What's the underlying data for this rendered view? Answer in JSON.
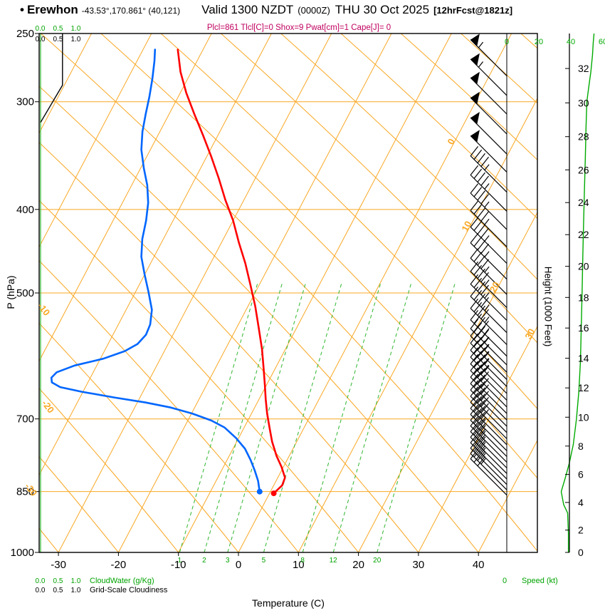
{
  "header": {
    "bullet": "•",
    "station": "Erewhon",
    "coords": "-43.53°,170.861° (40,121)",
    "valid": "Valid 1300 NZDT",
    "zulu": "(0000Z)",
    "date": "THU 30 Oct 2025",
    "fcst": "[12hrFcst@1821z]",
    "params": "Plcl=861 Tlcl[C]=0 Shox=9 Pwat[cm]=1 Cape[J]= 0"
  },
  "axes": {
    "pressure_title": "P (hPa)",
    "pressure_ticks": [
      250,
      300,
      400,
      500,
      700,
      850,
      1000
    ],
    "temp_title": "Temperature (C)",
    "temp_ticks": [
      -30,
      -20,
      -10,
      0,
      10,
      20,
      30,
      40
    ],
    "height_title": "Height (1000 Feet)",
    "height_ticks": [
      0,
      2,
      4,
      6,
      8,
      10,
      12,
      14,
      16,
      18,
      20,
      22,
      24,
      26,
      28,
      30,
      32
    ],
    "speed_title": "Speed (kt)",
    "speed_ticks": [
      0,
      20,
      40,
      60
    ],
    "speed_tick_bottom": "0",
    "cw_scale": [
      "0.0",
      "0.5",
      "1.0"
    ],
    "cloudwater_title": "CloudWater (g/Kg)",
    "cloudiness_title": "Grid-Scale Cloudiness",
    "isotherm_labels_right": [
      {
        "t": 0,
        "p": 335
      },
      {
        "t": 10,
        "p": 420
      },
      {
        "t": 20,
        "p": 494
      },
      {
        "t": 30,
        "p": 560
      }
    ],
    "adiabat_labels_left": [
      {
        "t": -10,
        "p": 525,
        "x": 58
      },
      {
        "t": -20,
        "p": 681,
        "x": 64
      },
      {
        "t": -30,
        "p": 850,
        "x": 40
      }
    ]
  },
  "colors": {
    "temperature": "#FF0000",
    "dewpoint": "#0066FF",
    "grid": "#F9A825",
    "moisture": "#3FBB3F",
    "green_text": "#00A300",
    "speed": "#00AA00",
    "params": "#C00060"
  },
  "chart_data": {
    "type": "skewt-logp-sounding",
    "title": "Erewhon sounding valid 1300 NZDT THU 30 Oct 2025",
    "pressure_range_hpa": [
      250,
      1000
    ],
    "temp_axis_range_c": [
      -30,
      45
    ],
    "lcl_hpa": 861,
    "temperature_c": [
      [
        854,
        0.7
      ],
      [
        836,
        1.4
      ],
      [
        819,
        1.2
      ],
      [
        796,
        -0.3
      ],
      [
        773,
        -2.1
      ],
      [
        744,
        -4.1
      ],
      [
        716,
        -5.8
      ],
      [
        690,
        -7.4
      ],
      [
        664,
        -8.9
      ],
      [
        639,
        -10.3
      ],
      [
        609,
        -12.1
      ],
      [
        581,
        -13.9
      ],
      [
        549,
        -16.3
      ],
      [
        518,
        -18.8
      ],
      [
        490,
        -21.4
      ],
      [
        462,
        -24.2
      ],
      [
        437,
        -27.1
      ],
      [
        412,
        -30.0
      ],
      [
        390,
        -33.1
      ],
      [
        368,
        -36.1
      ],
      [
        347,
        -39.3
      ],
      [
        328,
        -42.5
      ],
      [
        310,
        -45.8
      ],
      [
        293,
        -49.0
      ],
      [
        277,
        -51.8
      ],
      [
        261,
        -54.2
      ]
    ],
    "dewpoint_c": [
      [
        850,
        -1.8
      ],
      [
        826,
        -3.0
      ],
      [
        803,
        -4.5
      ],
      [
        781,
        -6.1
      ],
      [
        758,
        -8.0
      ],
      [
        737,
        -10.4
      ],
      [
        716,
        -13.3
      ],
      [
        703,
        -16.1
      ],
      [
        690,
        -19.9
      ],
      [
        679,
        -24.0
      ],
      [
        670,
        -28.6
      ],
      [
        661,
        -34.3
      ],
      [
        651,
        -40.2
      ],
      [
        643,
        -44.2
      ],
      [
        635,
        -46.0
      ],
      [
        627,
        -46.5
      ],
      [
        618,
        -46.1
      ],
      [
        607,
        -43.7
      ],
      [
        596,
        -39.5
      ],
      [
        584,
        -36.6
      ],
      [
        573,
        -35.1
      ],
      [
        559,
        -34.5
      ],
      [
        544,
        -34.7
      ],
      [
        523,
        -35.7
      ],
      [
        499,
        -37.8
      ],
      [
        476,
        -40.0
      ],
      [
        454,
        -42.1
      ],
      [
        433,
        -43.5
      ],
      [
        412,
        -44.5
      ],
      [
        393,
        -45.7
      ],
      [
        375,
        -47.4
      ],
      [
        358,
        -49.5
      ],
      [
        341,
        -51.5
      ],
      [
        325,
        -52.9
      ],
      [
        310,
        -53.9
      ],
      [
        296,
        -54.8
      ],
      [
        282,
        -55.9
      ],
      [
        269,
        -57.1
      ],
      [
        261,
        -58.0
      ]
    ],
    "wind_dir_deg": 315,
    "wind_kt": [
      [
        280,
        55
      ],
      [
        295,
        55
      ],
      [
        310,
        52
      ],
      [
        327,
        50
      ],
      [
        345,
        50
      ],
      [
        362,
        50
      ],
      [
        382,
        45
      ],
      [
        402,
        45
      ],
      [
        422,
        45
      ],
      [
        442,
        45
      ],
      [
        462,
        45
      ],
      [
        482,
        45
      ],
      [
        502,
        45
      ],
      [
        520,
        45
      ],
      [
        538,
        45
      ],
      [
        556,
        45
      ],
      [
        574,
        45
      ],
      [
        592,
        45
      ],
      [
        606,
        45
      ],
      [
        618,
        44
      ],
      [
        630,
        44
      ],
      [
        642,
        43
      ],
      [
        654,
        43
      ],
      [
        666,
        42
      ],
      [
        678,
        42
      ],
      [
        690,
        41
      ],
      [
        702,
        40
      ],
      [
        714,
        40
      ],
      [
        726,
        39
      ],
      [
        738,
        38
      ],
      [
        750,
        38
      ],
      [
        762,
        37
      ],
      [
        774,
        36
      ],
      [
        786,
        36
      ],
      [
        798,
        35
      ],
      [
        810,
        34
      ],
      [
        822,
        34
      ],
      [
        834,
        33
      ],
      [
        846,
        33
      ],
      [
        858,
        32
      ]
    ],
    "speed_profile_kt": [
      [
        250,
        54.5
      ],
      [
        256,
        54
      ],
      [
        265,
        53.5
      ],
      [
        277,
        52.5
      ],
      [
        290,
        51
      ],
      [
        300,
        50
      ],
      [
        320,
        49.5
      ],
      [
        350,
        49
      ],
      [
        380,
        48.5
      ],
      [
        412,
        48
      ],
      [
        450,
        47.5
      ],
      [
        500,
        47
      ],
      [
        550,
        46.5
      ],
      [
        600,
        46
      ],
      [
        650,
        45
      ],
      [
        700,
        43.5
      ],
      [
        750,
        41.5
      ],
      [
        788,
        39
      ],
      [
        820,
        36.5
      ],
      [
        850,
        34
      ],
      [
        880,
        35.5
      ],
      [
        900,
        38
      ],
      [
        950,
        38.5
      ],
      [
        1000,
        38.5
      ]
    ],
    "mixing_ratio_gkg": [
      [
        1,
        -9.8
      ],
      [
        2,
        -5.7
      ],
      [
        3,
        -1.8
      ],
      [
        5,
        4.2
      ],
      [
        8,
        10.7
      ],
      [
        12,
        15.8
      ],
      [
        20,
        23.1
      ]
    ],
    "cloudiness_profile": [
      [
        317,
        0
      ],
      [
        287,
        0.55
      ],
      [
        250,
        0.55
      ]
    ],
    "cloudwater_profile": [
      [
        1000,
        0
      ],
      [
        250,
        0
      ]
    ]
  }
}
